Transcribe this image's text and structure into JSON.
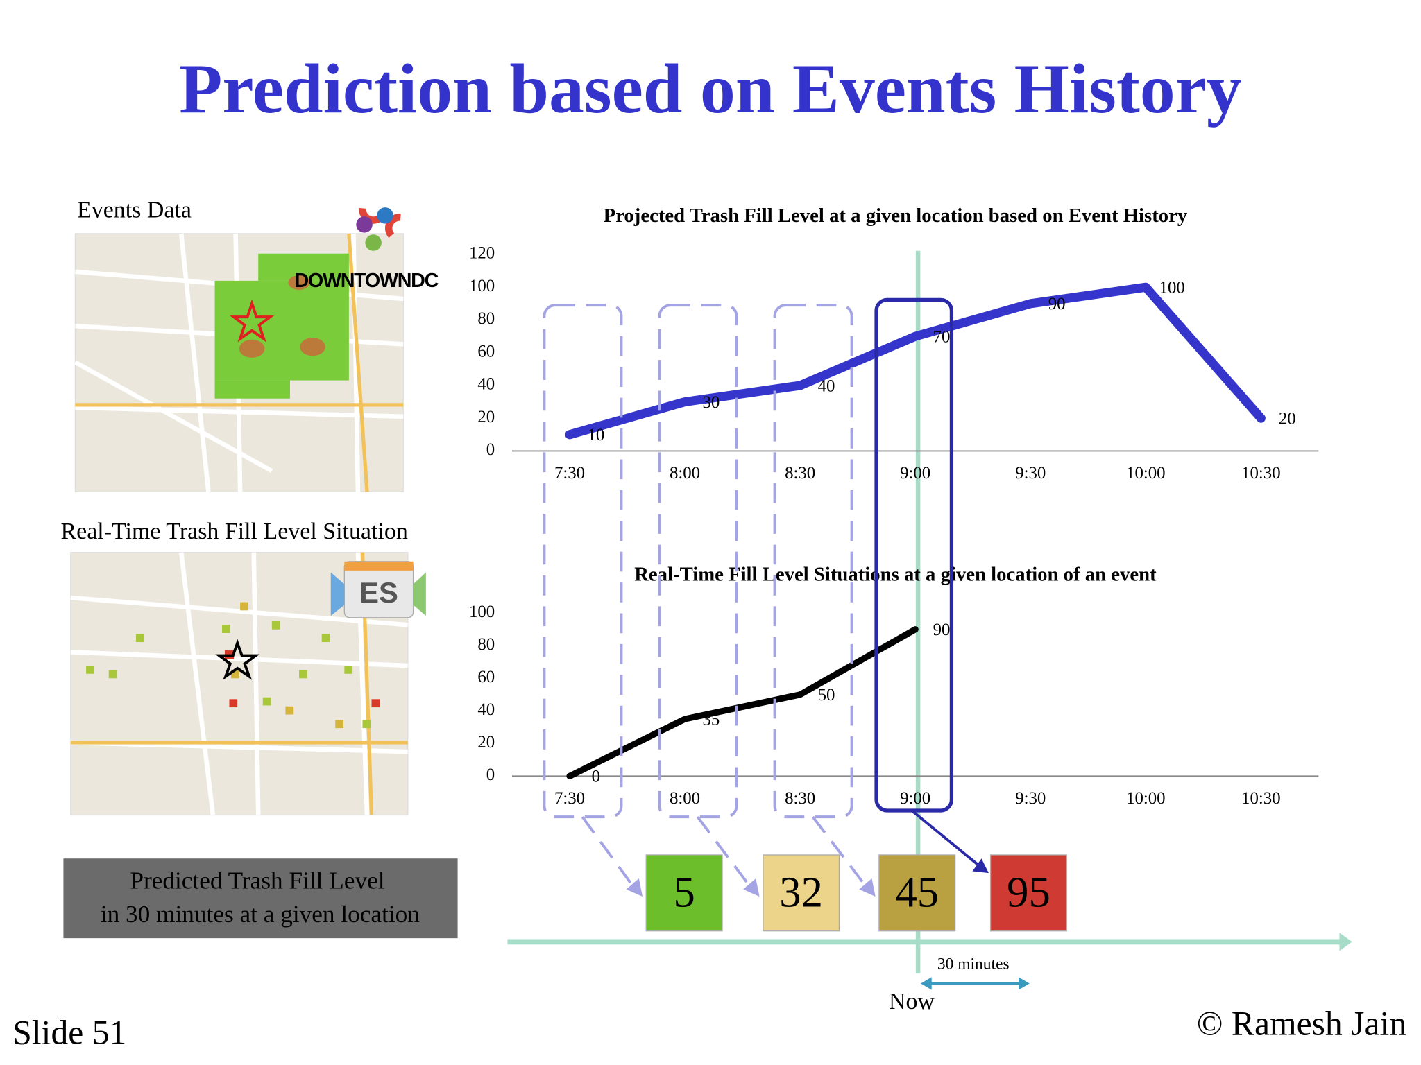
{
  "title": "Prediction based on Events History",
  "maps": [
    {
      "label": "Events Data",
      "logo": "DOWNTOWNDC"
    },
    {
      "label": "Real-Time Trash Fill Level Situation",
      "logo": "ES"
    }
  ],
  "prediction_box": [
    "Predicted Trash Fill Level",
    "in 30 minutes at a given location"
  ],
  "predictions": [
    {
      "text": "5",
      "color": "#6cbf2a"
    },
    {
      "text": "32",
      "color": "#ecd48a"
    },
    {
      "text": "45",
      "color": "#b9a040"
    },
    {
      "text": "95",
      "color": "#cf3b32"
    }
  ],
  "timeline": {
    "now": "Now",
    "interval": "30 minutes"
  },
  "footer": {
    "slide": "Slide  51",
    "copyright": "© Ramesh Jain"
  },
  "chart_data": [
    {
      "type": "line",
      "title": "Projected Trash Fill Level at a given location based on Event History",
      "categories": [
        "7:30",
        "8:00",
        "8:30",
        "9:00",
        "9:30",
        "10:00",
        "10:30"
      ],
      "values": [
        10,
        30,
        40,
        70,
        90,
        100,
        20
      ],
      "color": "#3535cc",
      "ylim": [
        0,
        120
      ],
      "yticks": [
        0,
        20,
        40,
        60,
        80,
        100,
        120
      ],
      "grid": false
    },
    {
      "type": "line",
      "title": "Real-Time Fill Level Situations at a given location of an event",
      "categories": [
        "7:30",
        "8:00",
        "8:30",
        "9:00",
        "9:30",
        "10:00",
        "10:30"
      ],
      "values": [
        0,
        35,
        50,
        90,
        null,
        null,
        null
      ],
      "color": "#000000",
      "ylim": [
        0,
        100
      ],
      "yticks": [
        0,
        20,
        40,
        60,
        80,
        100
      ],
      "grid": false
    }
  ]
}
